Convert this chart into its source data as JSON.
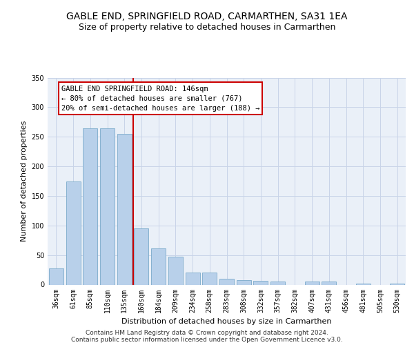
{
  "title": "GABLE END, SPRINGFIELD ROAD, CARMARTHEN, SA31 1EA",
  "subtitle": "Size of property relative to detached houses in Carmarthen",
  "xlabel": "Distribution of detached houses by size in Carmarthen",
  "ylabel": "Number of detached properties",
  "footer_line1": "Contains HM Land Registry data © Crown copyright and database right 2024.",
  "footer_line2": "Contains public sector information licensed under the Open Government Licence v3.0.",
  "categories": [
    "36sqm",
    "61sqm",
    "85sqm",
    "110sqm",
    "135sqm",
    "160sqm",
    "184sqm",
    "209sqm",
    "234sqm",
    "258sqm",
    "283sqm",
    "308sqm",
    "332sqm",
    "357sqm",
    "382sqm",
    "407sqm",
    "431sqm",
    "456sqm",
    "481sqm",
    "505sqm",
    "530sqm"
  ],
  "bar_heights": [
    27,
    175,
    264,
    264,
    255,
    95,
    61,
    47,
    20,
    20,
    10,
    8,
    6,
    5,
    0,
    5,
    5,
    0,
    2,
    0,
    2
  ],
  "bar_color": "#b8d0ea",
  "bar_edge_color": "#7aaaca",
  "grid_color": "#c8d4e8",
  "bg_color": "#eaf0f8",
  "vline_x": 4.5,
  "vline_color": "#cc0000",
  "annotation_box_text": "GABLE END SPRINGFIELD ROAD: 146sqm\n← 80% of detached houses are smaller (767)\n20% of semi-detached houses are larger (188) →",
  "ylim": [
    0,
    350
  ],
  "yticks": [
    0,
    50,
    100,
    150,
    200,
    250,
    300,
    350
  ],
  "title_fontsize": 10,
  "subtitle_fontsize": 9,
  "axis_label_fontsize": 8,
  "tick_fontsize": 7,
  "annotation_fontsize": 7.5,
  "footer_fontsize": 6.5
}
